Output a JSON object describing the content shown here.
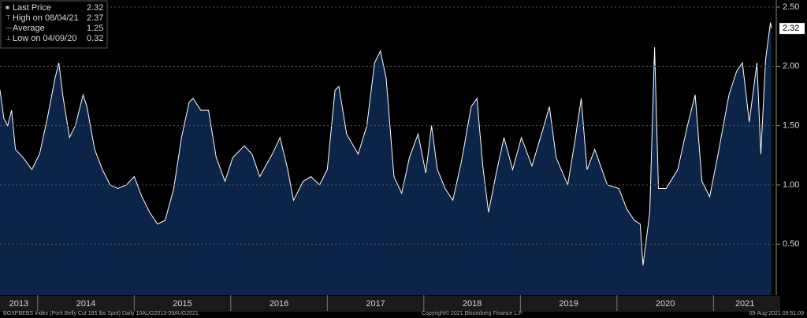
{
  "chart_data": {
    "type": "area",
    "legend_items": [
      {
        "label": "Last Price",
        "value": 2.32
      },
      {
        "label": "High on 08/04/21",
        "value": 2.37
      },
      {
        "label": "Average",
        "value": 1.25
      },
      {
        "label": "Low on 04/09/20",
        "value": 0.32
      }
    ],
    "series": [
      {
        "color": "#ffffff",
        "fill": "#0b2447",
        "x": [
          2013.61,
          2013.65,
          2013.69,
          2013.73,
          2013.77,
          2013.85,
          2013.94,
          2014.02,
          2014.1,
          2014.18,
          2014.22,
          2014.26,
          2014.33,
          2014.39,
          2014.47,
          2014.51,
          2014.59,
          2014.67,
          2014.75,
          2014.83,
          2014.92,
          2015.0,
          2015.08,
          2015.16,
          2015.24,
          2015.32,
          2015.41,
          2015.49,
          2015.57,
          2015.61,
          2015.69,
          2015.77,
          2015.85,
          2015.94,
          2016.02,
          2016.14,
          2016.22,
          2016.3,
          2016.43,
          2016.51,
          2016.59,
          2016.65,
          2016.75,
          2016.83,
          2016.92,
          2017.0,
          2017.08,
          2017.12,
          2017.2,
          2017.32,
          2017.41,
          2017.49,
          2017.55,
          2017.61,
          2017.69,
          2017.77,
          2017.85,
          2017.94,
          2018.02,
          2018.08,
          2018.14,
          2018.22,
          2018.3,
          2018.39,
          2018.49,
          2018.55,
          2018.61,
          2018.67,
          2018.75,
          2018.83,
          2018.92,
          2019.01,
          2019.12,
          2019.23,
          2019.3,
          2019.37,
          2019.49,
          2019.57,
          2019.63,
          2019.69,
          2019.77,
          2019.9,
          2020.02,
          2020.1,
          2020.18,
          2020.24,
          2020.27,
          2020.34,
          2020.39,
          2020.43,
          2020.51,
          2020.63,
          2020.73,
          2020.81,
          2020.88,
          2020.96,
          2021.04,
          2021.16,
          2021.24,
          2021.3,
          2021.37,
          2021.45,
          2021.49,
          2021.54,
          2021.59,
          2021.6
        ],
        "values": [
          1.8,
          1.56,
          1.5,
          1.63,
          1.3,
          1.23,
          1.13,
          1.26,
          1.56,
          1.9,
          2.03,
          1.76,
          1.4,
          1.5,
          1.76,
          1.66,
          1.3,
          1.13,
          1.0,
          0.97,
          1.0,
          1.07,
          0.9,
          0.77,
          0.67,
          0.7,
          0.97,
          1.4,
          1.7,
          1.73,
          1.63,
          1.63,
          1.23,
          1.03,
          1.23,
          1.33,
          1.26,
          1.07,
          1.26,
          1.4,
          1.13,
          0.87,
          1.03,
          1.07,
          1.0,
          1.13,
          1.8,
          1.83,
          1.43,
          1.26,
          1.5,
          2.03,
          2.13,
          1.9,
          1.07,
          0.93,
          1.23,
          1.43,
          1.1,
          1.5,
          1.13,
          0.97,
          0.87,
          1.2,
          1.66,
          1.73,
          1.16,
          0.77,
          1.1,
          1.4,
          1.13,
          1.4,
          1.16,
          1.46,
          1.66,
          1.23,
          1.0,
          1.4,
          1.73,
          1.13,
          1.3,
          1.0,
          0.97,
          0.8,
          0.7,
          0.67,
          0.32,
          0.77,
          2.16,
          0.97,
          0.97,
          1.13,
          1.5,
          1.76,
          1.03,
          0.9,
          1.23,
          1.76,
          1.96,
          2.03,
          1.53,
          2.03,
          1.26,
          2.06,
          2.37,
          2.32
        ]
      }
    ],
    "xlim": [
      2013.61,
      2021.65
    ],
    "xticks": [
      2013,
      2014,
      2015,
      2016,
      2017,
      2018,
      2019,
      2020,
      2021
    ],
    "ylim": [
      0.07,
      2.56
    ],
    "yticks": [
      {
        "value": 0.5,
        "label": "0.50"
      },
      {
        "value": 1.0,
        "label": "1.00"
      },
      {
        "value": 1.5,
        "label": "1.50"
      },
      {
        "value": 2.0,
        "label": "2.00"
      },
      {
        "value": 2.5,
        "label": "2.50"
      }
    ],
    "grid": true,
    "footer": [
      "BOXPBEBS Index (Pork Belly Cut 185 lbs Spot)",
      "Daily 10AUG2013-09AUG2021",
      "Copyright© 2021 Bloomberg Finance L.P.",
      "09-Aug-2021 09:51:09"
    ]
  }
}
